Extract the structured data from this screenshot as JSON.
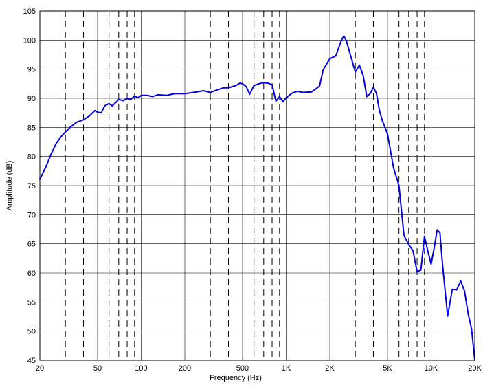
{
  "chart_data": {
    "type": "line",
    "xlabel": "Frequency (Hz)",
    "ylabel": "Amplitude (dB)",
    "x_scale": "log",
    "xlim": [
      20,
      20000
    ],
    "ylim": [
      45,
      105
    ],
    "grid": true,
    "x_ticks": [
      {
        "value": 20,
        "label": "20"
      },
      {
        "value": 50,
        "label": "50"
      },
      {
        "value": 100,
        "label": "100"
      },
      {
        "value": 200,
        "label": "200"
      },
      {
        "value": 500,
        "label": "500"
      },
      {
        "value": 1000,
        "label": "1K"
      },
      {
        "value": 2000,
        "label": "2K"
      },
      {
        "value": 5000,
        "label": "5K"
      },
      {
        "value": 10000,
        "label": "10K"
      },
      {
        "value": 20000,
        "label": "20K"
      }
    ],
    "x_minor_gridlines": [
      30,
      40,
      60,
      70,
      80,
      90,
      300,
      400,
      600,
      700,
      800,
      900,
      3000,
      4000,
      6000,
      7000,
      8000,
      9000
    ],
    "y_ticks": [
      45,
      50,
      55,
      60,
      65,
      70,
      75,
      80,
      85,
      90,
      95,
      100,
      105
    ],
    "series": [
      {
        "color": "#0000e0",
        "x": [
          20,
          22,
          24,
          26,
          28,
          30,
          33,
          36,
          40,
          44,
          48,
          50,
          53,
          56,
          60,
          63,
          67,
          70,
          75,
          80,
          85,
          90,
          95,
          100,
          110,
          120,
          130,
          150,
          170,
          200,
          230,
          270,
          300,
          330,
          370,
          400,
          450,
          480,
          500,
          530,
          560,
          600,
          650,
          700,
          750,
          800,
          850,
          900,
          950,
          1000,
          1100,
          1200,
          1300,
          1500,
          1700,
          1800,
          2000,
          2200,
          2400,
          2500,
          2600,
          2800,
          3000,
          3200,
          3400,
          3600,
          3800,
          4000,
          4200,
          4400,
          4600,
          5000,
          5500,
          6000,
          6500,
          7000,
          7500,
          8000,
          8500,
          9000,
          9500,
          10000,
          10500,
          11000,
          11500,
          12000,
          13000,
          14000,
          15000,
          16000,
          17000,
          18000,
          19000,
          20000
        ],
        "y": [
          76.1,
          78.2,
          80.5,
          82.3,
          83.4,
          84.2,
          85.2,
          85.9,
          86.3,
          87.0,
          87.9,
          87.6,
          87.5,
          88.7,
          89.1,
          88.7,
          89.3,
          89.8,
          89.6,
          90.0,
          89.8,
          90.4,
          90.1,
          90.5,
          90.5,
          90.3,
          90.6,
          90.5,
          90.8,
          90.8,
          91.0,
          91.3,
          91.0,
          91.4,
          91.8,
          91.8,
          92.2,
          92.6,
          92.5,
          92.0,
          90.7,
          92.2,
          92.5,
          92.7,
          92.6,
          92.3,
          89.5,
          90.3,
          89.4,
          90.1,
          90.9,
          91.2,
          91.0,
          91.1,
          92.1,
          94.9,
          96.8,
          97.3,
          99.9,
          100.7,
          99.9,
          97.1,
          94.5,
          95.7,
          93.9,
          90.3,
          90.8,
          91.9,
          90.8,
          87.9,
          86.2,
          83.9,
          78.1,
          75.0,
          66.4,
          64.9,
          63.8,
          60.2,
          60.5,
          66.3,
          63.7,
          61.5,
          64.3,
          67.4,
          66.9,
          61.3,
          52.6,
          57.2,
          57.1,
          58.6,
          56.9,
          53.0,
          50.4,
          45.0
        ]
      }
    ]
  }
}
